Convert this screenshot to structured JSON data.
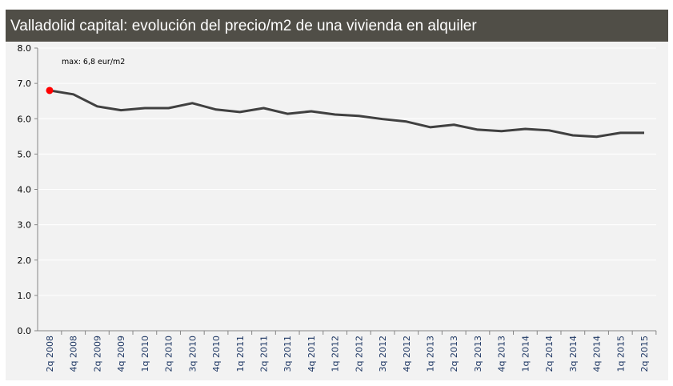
{
  "chart_data": {
    "type": "line",
    "title": "Valladolid capital: evolución del precio/m2 de una vivienda en alquiler",
    "annotation": "max: 6,8 eur/m2",
    "xlabel": "",
    "ylabel": "",
    "ylim": [
      0,
      8
    ],
    "yticks": [
      "0.0",
      "1.0",
      "2.0",
      "3.0",
      "4.0",
      "5.0",
      "6.0",
      "7.0",
      "8.0"
    ],
    "grid": true,
    "categories": [
      "2q 2008",
      "4q 2008",
      "2q 2009",
      "4q 2009",
      "1q 2010",
      "2q 2010",
      "3q 2010",
      "4q 2010",
      "1q 2011",
      "2q 2011",
      "3q 2011",
      "4q 2011",
      "1q 2012",
      "2q 2012",
      "3q 2012",
      "4q 2012",
      "1q 2013",
      "2q 2013",
      "3q 2013",
      "4q 2013",
      "1q 2014",
      "2q 2014",
      "3q 2014",
      "4q 2014",
      "1q 2015",
      "2q 2015"
    ],
    "values": [
      6.8,
      6.69,
      6.35,
      6.24,
      6.3,
      6.3,
      6.44,
      6.26,
      6.19,
      6.3,
      6.14,
      6.21,
      6.12,
      6.08,
      5.99,
      5.92,
      5.76,
      5.83,
      5.69,
      5.65,
      5.71,
      5.67,
      5.53,
      5.49,
      5.6,
      5.6
    ],
    "max_index": 0,
    "colors": {
      "line": "#404040",
      "max_marker": "#ff0000",
      "title_bar": "#504e47",
      "plot_bg": "#f2f2f2",
      "tick_label_x": "#1f3864"
    }
  }
}
